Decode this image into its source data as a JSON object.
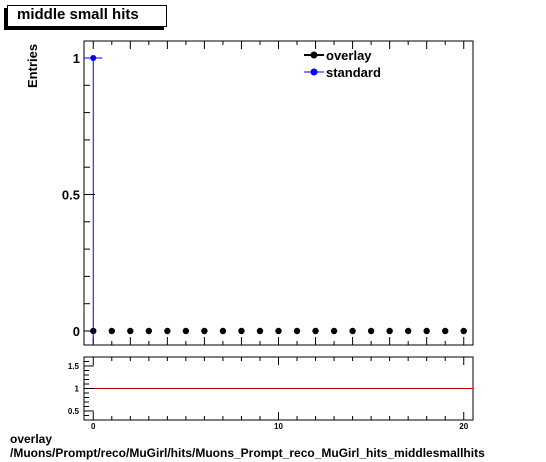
{
  "title": "middle small hits",
  "footer": {
    "line1": "overlay",
    "line2": "/Muons/Prompt/reco/MuGirl/hits/Muons_Prompt_reco_MuGirl_hits_middlesmallhits"
  },
  "colors": {
    "overlay": "#000000",
    "standard": "#0000ff",
    "ratio_line": "#cc0000"
  },
  "chart_data": [
    {
      "type": "scatter",
      "ylabel": "Entries",
      "xlabel": "",
      "xlim": [
        -0.5,
        20.5
      ],
      "ylim": [
        0,
        1.05
      ],
      "y_ticks": [
        {
          "value": 0,
          "label": "0"
        },
        {
          "value": 0.5,
          "label": "0.5"
        },
        {
          "value": 1,
          "label": "1"
        }
      ],
      "legend": {
        "placement": "top-right",
        "entries": [
          "overlay",
          "standard"
        ]
      },
      "series": [
        {
          "name": "overlay",
          "x": [
            0,
            1,
            2,
            3,
            4,
            5,
            6,
            7,
            8,
            9,
            10,
            11,
            12,
            13,
            14,
            15,
            16,
            17,
            18,
            19,
            20
          ],
          "y": [
            0,
            0,
            0,
            0,
            0,
            0,
            0,
            0,
            0,
            0,
            0,
            0,
            0,
            0,
            0,
            0,
            0,
            0,
            0,
            0,
            0
          ]
        },
        {
          "name": "standard",
          "x": [
            0
          ],
          "y": [
            1
          ]
        }
      ]
    },
    {
      "type": "line",
      "xlim": [
        -0.5,
        20.5
      ],
      "ylim": [
        0.3,
        1.7
      ],
      "x_ticks": [
        {
          "value": 0,
          "label": "0"
        },
        {
          "value": 10,
          "label": "10"
        },
        {
          "value": 20,
          "label": "20"
        }
      ],
      "y_ticks": [
        {
          "value": 0.5,
          "label": "0.5"
        },
        {
          "value": 1,
          "label": "1"
        },
        {
          "value": 1.5,
          "label": "1.5"
        }
      ],
      "reference_line": 1
    }
  ]
}
